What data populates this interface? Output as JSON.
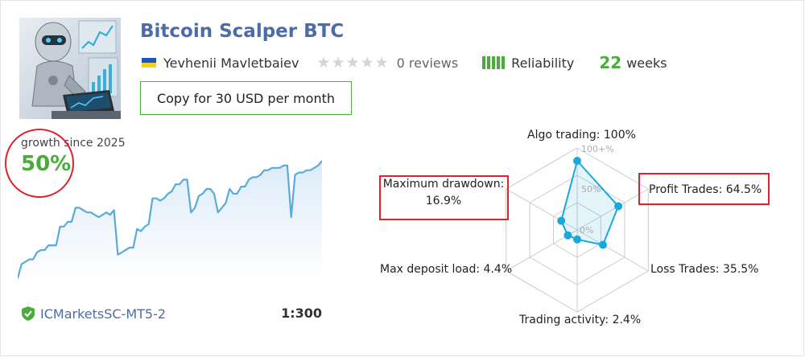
{
  "signal": {
    "title": "Bitcoin Scalper BTC",
    "author": "Yevhenii Mavletbaiev",
    "reviews": "0 reviews",
    "reliability": "Reliability",
    "weeks_value": "22",
    "weeks_label": "weeks",
    "copy_button": "Copy for 30 USD per month"
  },
  "growth": {
    "label": "growth since 2025",
    "value": "50%"
  },
  "broker": {
    "name": "ICMarketsSC-MT5-2",
    "leverage": "1:300"
  },
  "radar": {
    "algo_trading": "Algo trading: 100%",
    "profit_trades": "Profit Trades: 64.5%",
    "loss_trades": "Loss Trades: 35.5%",
    "trading_activity": "Trading activity: 2.4%",
    "max_deposit_load": "Max deposit load: 4.4%",
    "max_drawdown_label": "Maximum drawdown:",
    "max_drawdown_value": "16.9%",
    "tick_100": "100+%",
    "tick_50": "50%",
    "tick_0": "0%"
  },
  "chart_data": [
    {
      "type": "area",
      "x": [
        0,
        1,
        2,
        3,
        4,
        5,
        6,
        7,
        8,
        9,
        10,
        11,
        12,
        13,
        14,
        15,
        16,
        17,
        18,
        19,
        20,
        21,
        22,
        23,
        24,
        25,
        26,
        27,
        28,
        29,
        30,
        31,
        32,
        33,
        34,
        35,
        36,
        37,
        38,
        39,
        40,
        41,
        42,
        43,
        44,
        45,
        46,
        47,
        48,
        49,
        50,
        51,
        52,
        53,
        54,
        55,
        56,
        57,
        58,
        59,
        60,
        61,
        62,
        63,
        64,
        65,
        66,
        67,
        68,
        69,
        70,
        71,
        72,
        73,
        74,
        75,
        76,
        77,
        78,
        79
      ],
      "values": [
        0,
        6,
        7,
        8,
        8,
        11,
        12,
        12,
        14,
        14,
        14,
        22,
        22,
        24,
        24,
        30,
        30,
        29,
        28,
        28,
        27,
        26,
        27,
        28,
        27,
        29,
        10,
        11,
        12,
        13,
        13,
        21,
        20,
        22,
        23,
        34,
        34,
        33,
        34,
        36,
        37,
        40,
        40,
        42,
        42,
        28,
        30,
        35,
        36,
        38,
        38,
        36,
        28,
        30,
        32,
        38,
        36,
        36,
        39,
        39,
        42,
        43,
        43,
        44,
        46,
        46,
        47,
        47,
        47,
        48,
        48,
        26,
        44,
        45,
        45,
        46,
        46,
        47,
        48,
        50
      ],
      "ylim": [
        0,
        50
      ],
      "grid": false,
      "color": "#5aabdb"
    },
    {
      "type": "radar",
      "axes": [
        "Algo trading",
        "Profit Trades",
        "Loss Trades",
        "Trading activity",
        "Max deposit load",
        "Maximum drawdown"
      ],
      "values": [
        100,
        64.5,
        35.5,
        2.4,
        4.4,
        16.9
      ],
      "ticks": [
        "100+%",
        "50%",
        "0%"
      ],
      "color": "#1aa7e0"
    }
  ],
  "colors": {
    "accent_blue": "#4a6da7",
    "success_green": "#4aad3a",
    "highlight_red": "#e0202a",
    "series_blue": "#1aa7e0"
  },
  "icons": {
    "verified": "shield-check-icon",
    "flag": "ukraine-flag-icon",
    "avatar": "robot-trader-avatar"
  }
}
